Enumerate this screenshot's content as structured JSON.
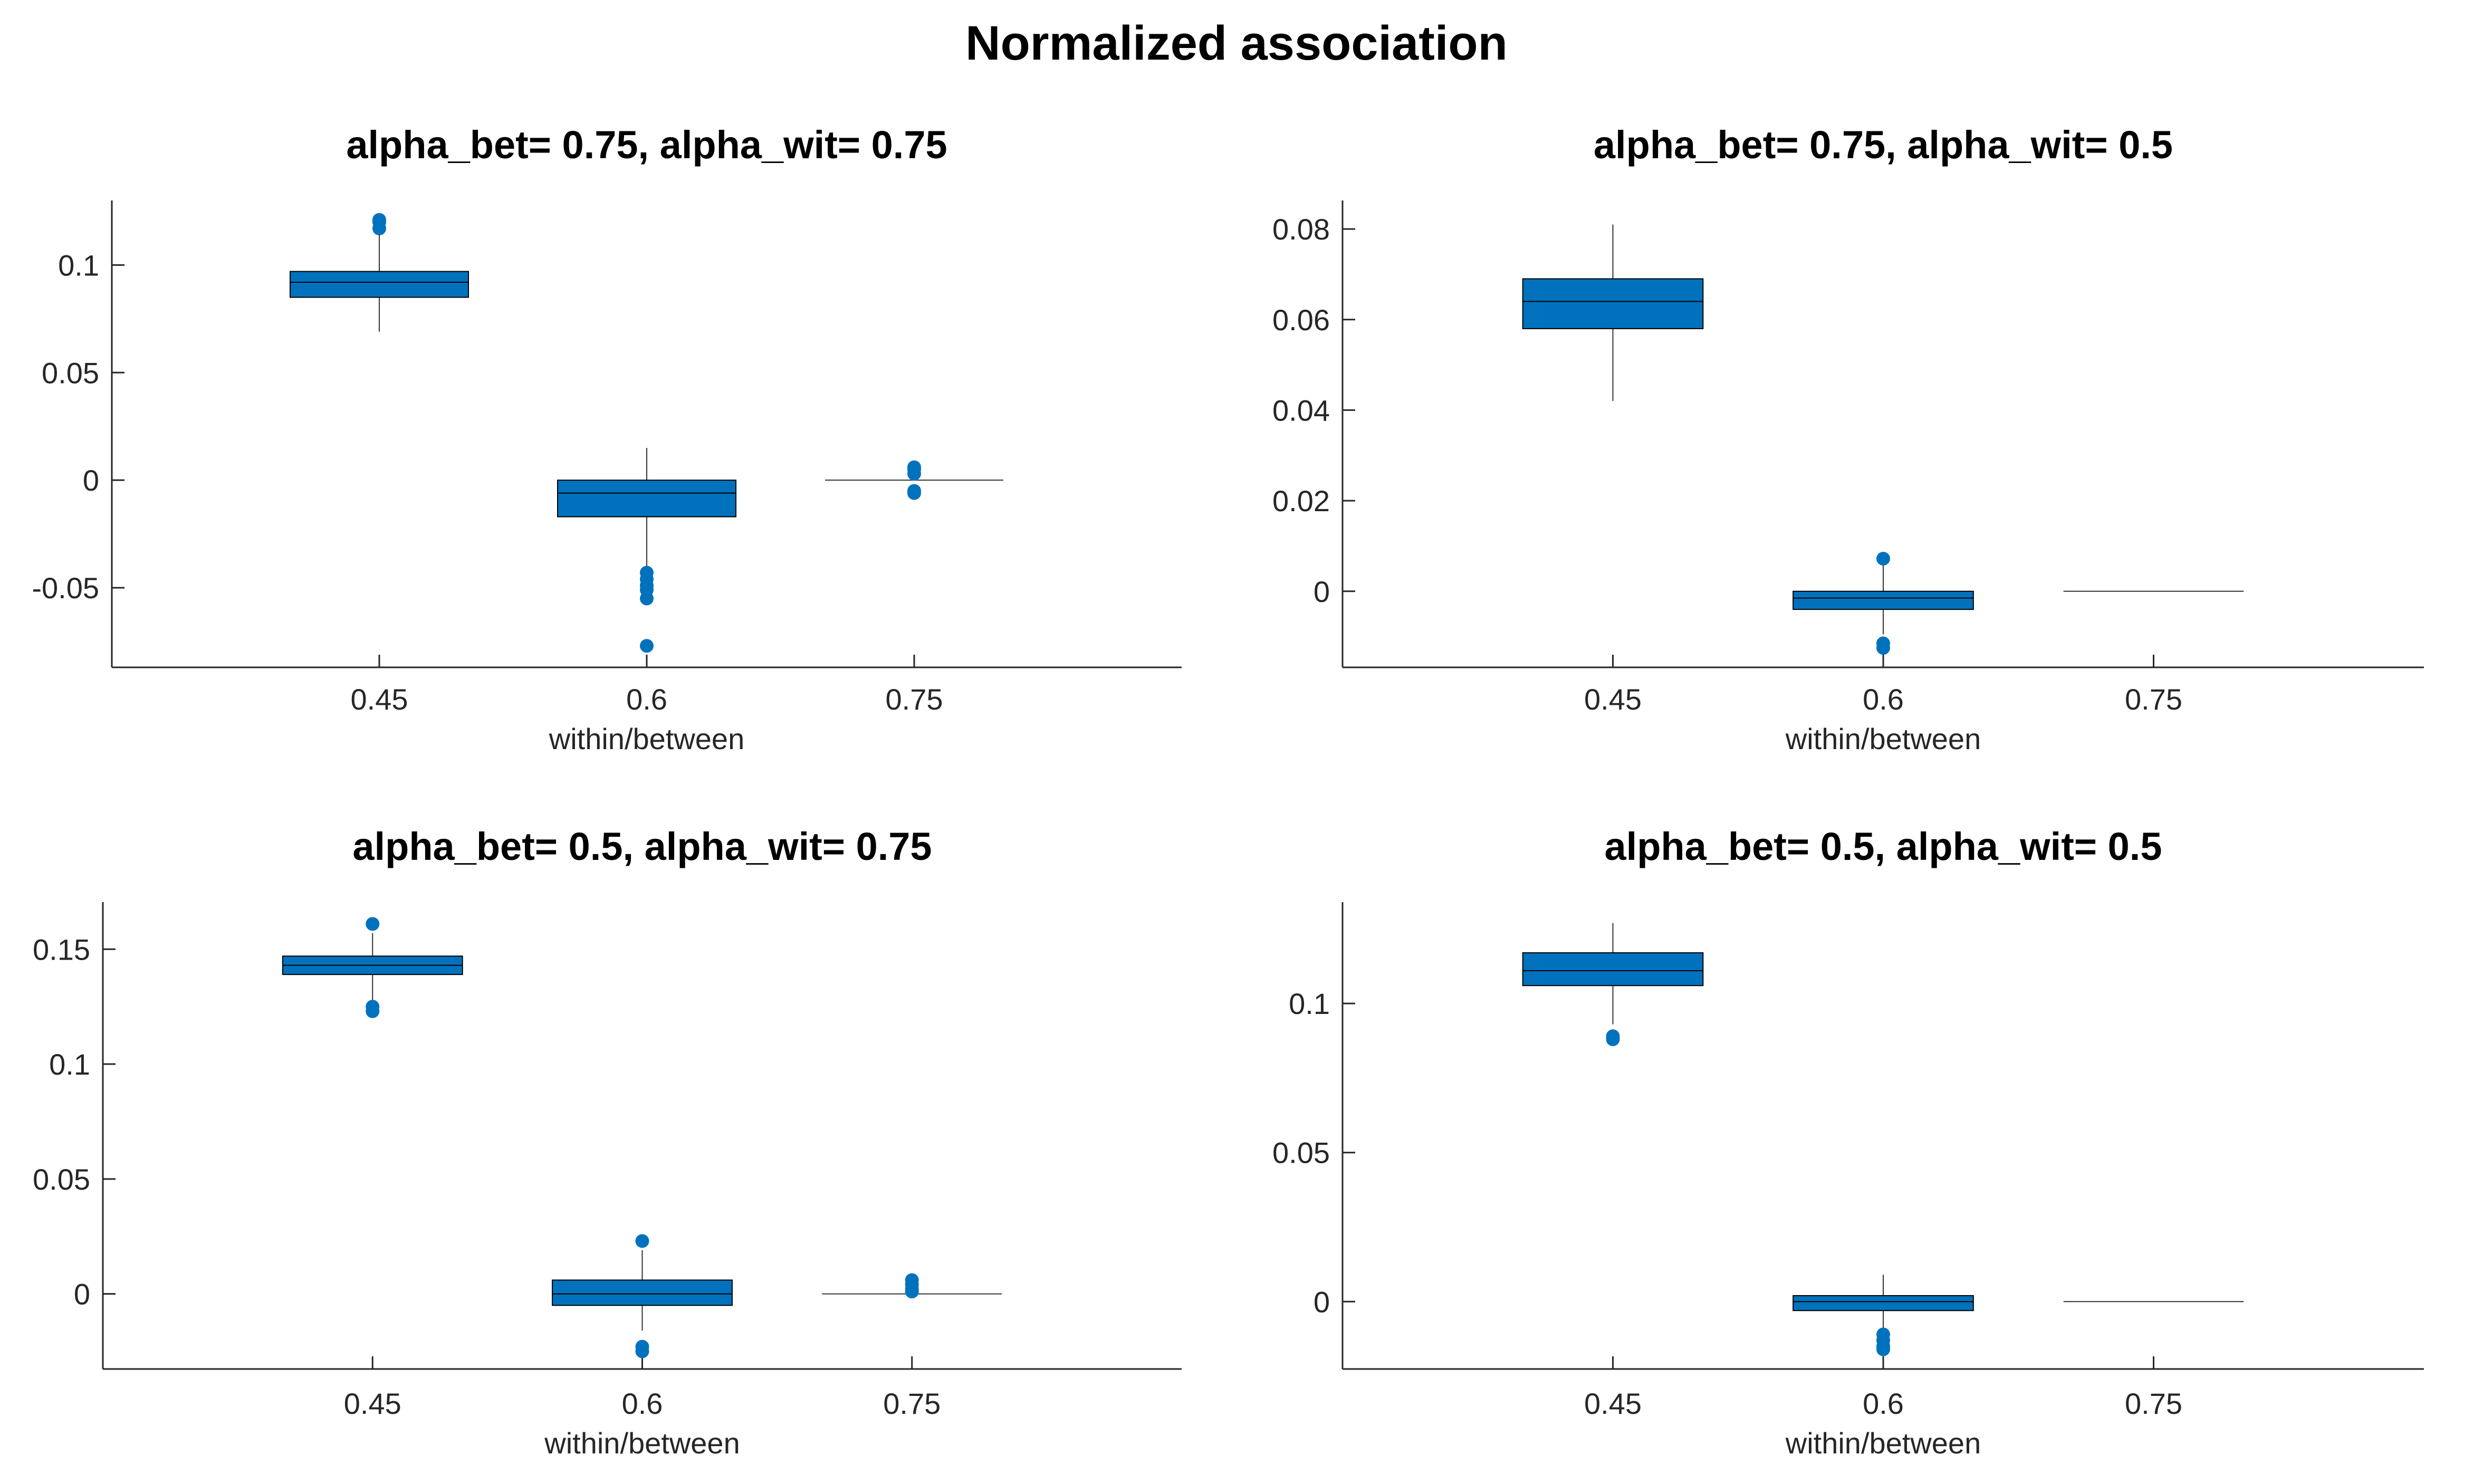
{
  "figure_title": "Normalized association",
  "colors": {
    "box": "#0072BD",
    "outlier": "#0072BD",
    "axis": "#262626"
  },
  "chart_data": [
    {
      "type": "box",
      "title": "alpha_bet= 0.75, alpha_wit= 0.75",
      "xlabel": "within/between",
      "ylabel": "",
      "categories": [
        "0.45",
        "0.6",
        "0.75"
      ],
      "xlim": [
        0.3,
        0.9
      ],
      "ylim": [
        -0.087,
        0.13
      ],
      "yticks": [
        -0.05,
        0,
        0.05,
        0.1
      ],
      "ytick_labels": [
        "-0.05",
        "0",
        "0.05",
        "0.1"
      ],
      "boxes": [
        {
          "category": "0.45",
          "q1": 0.085,
          "median": 0.092,
          "q3": 0.097,
          "whisker_low": 0.069,
          "whisker_high": 0.116,
          "outliers": [
            0.117,
            0.12,
            0.121
          ]
        },
        {
          "category": "0.6",
          "q1": -0.017,
          "median": -0.006,
          "q3": 0.0,
          "whisker_low": -0.041,
          "whisker_high": 0.015,
          "outliers": [
            -0.043,
            -0.046,
            -0.049,
            -0.051,
            -0.055,
            -0.077
          ]
        },
        {
          "category": "0.75",
          "q1": 0.0,
          "median": 0.0,
          "q3": 0.0,
          "whisker_low": 0.0,
          "whisker_high": 0.0,
          "outliers": [
            0.006,
            0.005,
            0.003,
            -0.005,
            -0.006
          ]
        }
      ]
    },
    {
      "type": "box",
      "title": "alpha_bet= 0.75, alpha_wit= 0.5",
      "xlabel": "within/between",
      "ylabel": "",
      "categories": [
        "0.45",
        "0.6",
        "0.75"
      ],
      "xlim": [
        0.3,
        0.9
      ],
      "ylim": [
        -0.0168,
        0.0863
      ],
      "yticks": [
        0,
        0.02,
        0.04,
        0.06,
        0.08
      ],
      "ytick_labels": [
        "0",
        "0.02",
        "0.04",
        "0.06",
        "0.08"
      ],
      "boxes": [
        {
          "category": "0.45",
          "q1": 0.058,
          "median": 0.064,
          "q3": 0.069,
          "whisker_low": 0.042,
          "whisker_high": 0.081,
          "outliers": []
        },
        {
          "category": "0.6",
          "q1": -0.004,
          "median": -0.0015,
          "q3": 0.0,
          "whisker_low": -0.0095,
          "whisker_high": 0.006,
          "outliers": [
            0.0072,
            -0.0115,
            -0.0125
          ]
        },
        {
          "category": "0.75",
          "q1": 0.0,
          "median": 0.0,
          "q3": 0.0,
          "whisker_low": 0.0,
          "whisker_high": 0.0,
          "outliers": []
        }
      ]
    },
    {
      "type": "box",
      "title": "alpha_bet= 0.5, alpha_wit= 0.75",
      "xlabel": "within/between",
      "ylabel": "",
      "categories": [
        "0.45",
        "0.6",
        "0.75"
      ],
      "xlim": [
        0.3,
        0.9
      ],
      "ylim": [
        -0.0327,
        0.1705
      ],
      "yticks": [
        0,
        0.05,
        0.1,
        0.15
      ],
      "ytick_labels": [
        "0",
        "0.05",
        "0.1",
        "0.15"
      ],
      "boxes": [
        {
          "category": "0.45",
          "q1": 0.139,
          "median": 0.143,
          "q3": 0.147,
          "whisker_low": 0.128,
          "whisker_high": 0.157,
          "outliers": [
            0.161,
            0.125,
            0.123
          ]
        },
        {
          "category": "0.6",
          "q1": -0.005,
          "median": 0.0,
          "q3": 0.006,
          "whisker_low": -0.016,
          "whisker_high": 0.019,
          "outliers": [
            0.023,
            -0.023,
            -0.025
          ]
        },
        {
          "category": "0.75",
          "q1": 0.0,
          "median": 0.0,
          "q3": 0.0,
          "whisker_low": 0.0,
          "whisker_high": 0.0,
          "outliers": [
            0.006,
            0.004,
            0.002,
            0.001
          ]
        }
      ]
    },
    {
      "type": "box",
      "title": "alpha_bet= 0.5, alpha_wit= 0.5",
      "xlabel": "within/between",
      "ylabel": "",
      "categories": [
        "0.45",
        "0.6",
        "0.75"
      ],
      "xlim": [
        0.3,
        0.9
      ],
      "ylim": [
        -0.0226,
        0.134
      ],
      "yticks": [
        0,
        0.05,
        0.1
      ],
      "ytick_labels": [
        "0",
        "0.05",
        "0.1"
      ],
      "boxes": [
        {
          "category": "0.45",
          "q1": 0.106,
          "median": 0.111,
          "q3": 0.117,
          "whisker_low": 0.093,
          "whisker_high": 0.127,
          "outliers": [
            0.089,
            0.088
          ]
        },
        {
          "category": "0.6",
          "q1": -0.003,
          "median": 0.0,
          "q3": 0.002,
          "whisker_low": -0.009,
          "whisker_high": 0.009,
          "outliers": [
            -0.011,
            -0.013,
            -0.015,
            -0.016
          ]
        },
        {
          "category": "0.75",
          "q1": 0.0,
          "median": 0.0,
          "q3": 0.0,
          "whisker_low": 0.0,
          "whisker_high": 0.0,
          "outliers": []
        }
      ]
    }
  ]
}
